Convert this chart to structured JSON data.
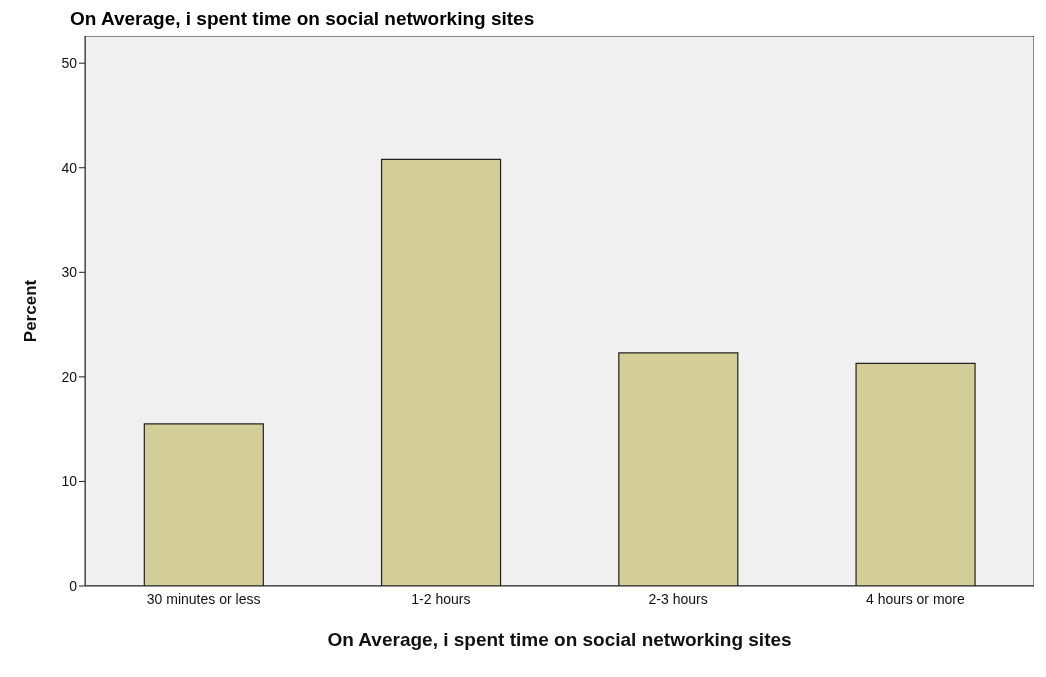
{
  "chart_data": {
    "type": "bar",
    "title": "On Average, i spent time on social networking sites",
    "xlabel": "On Average, i spent time on social networking sites",
    "ylabel": "Percent",
    "categories": [
      "30 minutes or less",
      "1-2 hours",
      "2-3 hours",
      "4 hours or more"
    ],
    "values": [
      15.5,
      40.8,
      22.3,
      21.3
    ],
    "color": "#d3ce97",
    "ylim": [
      0,
      52.6
    ],
    "yticks": [
      0,
      10,
      20,
      30,
      40,
      50
    ],
    "grid": false
  }
}
